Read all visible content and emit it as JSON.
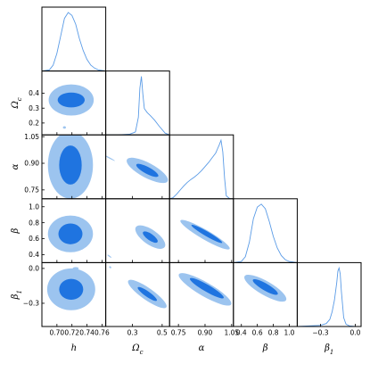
{
  "chart_data": {
    "type": "corner",
    "parameters": [
      {
        "id": "h",
        "label": "h",
        "range": [
          0.68,
          0.765
        ],
        "ticks": [
          0.7,
          0.72,
          0.74,
          0.76
        ],
        "tick_labels": [
          "0.70",
          "0.72",
          "0.74",
          "0.76"
        ]
      },
      {
        "id": "omega_c",
        "label": "Ω",
        "label_sub": "c",
        "range": [
          0.12,
          0.55
        ],
        "ticks": [
          0.2,
          0.3,
          0.4
        ],
        "tick_labels": [
          "0.2",
          "0.3",
          "0.4"
        ],
        "xticks": [
          0.3,
          0.5
        ],
        "xtick_labels": [
          "0.3",
          "0.5"
        ]
      },
      {
        "id": "alpha",
        "label": "α",
        "range": [
          0.7,
          1.06
        ],
        "ticks": [
          0.75,
          0.9,
          1.05
        ],
        "tick_labels": [
          "0.75",
          "0.90",
          "1.05"
        ],
        "xticks": [
          0.75,
          0.9,
          1.05
        ],
        "xtick_labels": [
          "0.75",
          "0.90",
          "1.05"
        ]
      },
      {
        "id": "beta",
        "label": "β",
        "range": [
          0.3,
          1.1
        ],
        "ticks": [
          0.4,
          0.6,
          0.8,
          1.0
        ],
        "tick_labels": [
          "0.4",
          "0.6",
          "0.8",
          "1.0"
        ]
      },
      {
        "id": "beta1",
        "label": "β",
        "label_sub": "1",
        "range": [
          -0.5,
          0.05
        ],
        "ticks": [
          -0.3,
          0.0
        ],
        "tick_labels": [
          "−0.3",
          "0.0"
        ]
      }
    ],
    "marginals": [
      {
        "param": "h",
        "x": [
          0.68,
          0.69,
          0.695,
          0.7,
          0.705,
          0.71,
          0.715,
          0.72,
          0.725,
          0.73,
          0.735,
          0.74,
          0.745,
          0.75,
          0.755,
          0.76,
          0.765
        ],
        "y": [
          0.0,
          0.02,
          0.1,
          0.3,
          0.6,
          0.9,
          1.0,
          0.95,
          0.8,
          0.55,
          0.35,
          0.2,
          0.1,
          0.05,
          0.02,
          0.01,
          0.0
        ]
      },
      {
        "param": "omega_c",
        "x": [
          0.12,
          0.2,
          0.28,
          0.32,
          0.34,
          0.35,
          0.36,
          0.37,
          0.38,
          0.4,
          0.42,
          0.45,
          0.48,
          0.52,
          0.55
        ],
        "y": [
          0.0,
          0.0,
          0.01,
          0.05,
          0.3,
          0.8,
          1.0,
          0.7,
          0.45,
          0.38,
          0.33,
          0.25,
          0.15,
          0.03,
          0.0
        ]
      },
      {
        "param": "alpha",
        "x": [
          0.7,
          0.72,
          0.74,
          0.76,
          0.78,
          0.8,
          0.82,
          0.84,
          0.86,
          0.88,
          0.9,
          0.92,
          0.94,
          0.96,
          0.97,
          0.98,
          0.99,
          1.0,
          1.01,
          1.02,
          1.04,
          1.06
        ],
        "y": [
          0.0,
          0.02,
          0.08,
          0.15,
          0.22,
          0.28,
          0.33,
          0.37,
          0.42,
          0.48,
          0.55,
          0.62,
          0.7,
          0.78,
          0.85,
          0.92,
          1.0,
          0.8,
          0.35,
          0.05,
          0.0,
          0.0
        ]
      },
      {
        "param": "beta",
        "x": [
          0.3,
          0.4,
          0.45,
          0.5,
          0.55,
          0.6,
          0.65,
          0.7,
          0.75,
          0.8,
          0.85,
          0.9,
          0.95,
          1.0,
          1.1
        ],
        "y": [
          0.0,
          0.02,
          0.1,
          0.35,
          0.75,
          0.95,
          1.0,
          0.92,
          0.7,
          0.45,
          0.25,
          0.12,
          0.05,
          0.02,
          0.0
        ]
      },
      {
        "param": "beta1",
        "x": [
          -0.5,
          -0.4,
          -0.3,
          -0.25,
          -0.22,
          -0.2,
          -0.18,
          -0.16,
          -0.15,
          -0.14,
          -0.13,
          -0.12,
          -0.1,
          -0.08,
          -0.05,
          0.0,
          0.05
        ],
        "y": [
          0.0,
          0.01,
          0.02,
          0.05,
          0.12,
          0.25,
          0.45,
          0.75,
          0.95,
          1.0,
          0.9,
          0.6,
          0.15,
          0.04,
          0.01,
          0.0,
          0.0
        ]
      }
    ],
    "contours": [
      {
        "x": "h",
        "y": "omega_c",
        "angle": 0,
        "outer": {
          "cx": 0.719,
          "cy": 0.355,
          "rx": 0.03,
          "ry": 0.105
        },
        "inner": {
          "cx": 0.719,
          "cy": 0.355,
          "rx": 0.018,
          "ry": 0.05
        },
        "islands": [
          {
            "cx": 0.71,
            "cy": 0.17,
            "rx": 0.002,
            "ry": 0.008
          }
        ]
      },
      {
        "x": "h",
        "y": "alpha",
        "angle": 0,
        "outer": {
          "cx": 0.718,
          "cy": 0.89,
          "rx": 0.03,
          "ry": 0.19
        },
        "inner": {
          "cx": 0.718,
          "cy": 0.89,
          "rx": 0.015,
          "ry": 0.11
        }
      },
      {
        "x": "omega_c",
        "y": "alpha",
        "angle": -62,
        "outer": {
          "cx": 0.4,
          "cy": 0.86,
          "rx": 0.05,
          "ry": 0.13
        },
        "inner": {
          "cx": 0.4,
          "cy": 0.86,
          "rx": 0.023,
          "ry": 0.07
        },
        "islands": [
          {
            "cx": 0.145,
            "cy": 0.93,
            "rx": 0.004,
            "ry": 0.035
          }
        ]
      },
      {
        "x": "alpha",
        "y": "alpha",
        "angle": 0,
        "outer": null,
        "inner": null
      },
      {
        "x": "h",
        "y": "beta",
        "angle": 0,
        "outer": {
          "cx": 0.718,
          "cy": 0.66,
          "rx": 0.03,
          "ry": 0.23
        },
        "inner": {
          "cx": 0.718,
          "cy": 0.66,
          "rx": 0.016,
          "ry": 0.13
        }
      },
      {
        "x": "omega_c",
        "y": "beta",
        "angle": -55,
        "outer": {
          "cx": 0.42,
          "cy": 0.62,
          "rx": 0.05,
          "ry": 0.22
        },
        "inner": {
          "cx": 0.42,
          "cy": 0.62,
          "rx": 0.022,
          "ry": 0.11
        },
        "islands": [
          {
            "cx": 0.145,
            "cy": 0.38,
            "rx": 0.004,
            "ry": 0.03
          }
        ]
      },
      {
        "x": "alpha",
        "y": "beta",
        "angle": 30,
        "outer": {
          "cx": 0.9,
          "cy": 0.65,
          "rx": 0.16,
          "ry": 0.06
        },
        "inner": {
          "cx": 0.91,
          "cy": 0.66,
          "rx": 0.1,
          "ry": 0.03
        }
      },
      {
        "x": "h",
        "y": "beta1",
        "angle": 0,
        "outer": {
          "cx": 0.719,
          "cy": -0.18,
          "rx": 0.032,
          "ry": 0.18
        },
        "inner": {
          "cx": 0.719,
          "cy": -0.18,
          "rx": 0.016,
          "ry": 0.09
        },
        "islands": [
          {
            "cx": 0.725,
            "cy": 0.0,
            "rx": 0.004,
            "ry": 0.012
          }
        ]
      },
      {
        "x": "omega_c",
        "y": "beta1",
        "angle": -55,
        "outer": {
          "cx": 0.4,
          "cy": -0.22,
          "rx": 0.04,
          "ry": 0.2
        },
        "inner": {
          "cx": 0.4,
          "cy": -0.22,
          "rx": 0.018,
          "ry": 0.1
        },
        "islands": [
          {
            "cx": 0.15,
            "cy": 0.01,
            "rx": 0.006,
            "ry": 0.01
          }
        ]
      },
      {
        "x": "alpha",
        "y": "beta1",
        "angle": 30,
        "outer": {
          "cx": 0.9,
          "cy": -0.18,
          "rx": 0.17,
          "ry": 0.06
        },
        "inner": {
          "cx": 0.91,
          "cy": -0.17,
          "rx": 0.11,
          "ry": 0.03
        }
      },
      {
        "x": "beta",
        "y": "beta1",
        "angle": 30,
        "outer": {
          "cx": 0.7,
          "cy": -0.17,
          "rx": 0.3,
          "ry": 0.06
        },
        "inner": {
          "cx": 0.7,
          "cy": -0.16,
          "rx": 0.18,
          "ry": 0.03
        }
      }
    ],
    "colors": {
      "outer": "#9cc4ef",
      "inner": "#1f74e0",
      "marginal": "#5a9be6"
    },
    "grid": false
  }
}
